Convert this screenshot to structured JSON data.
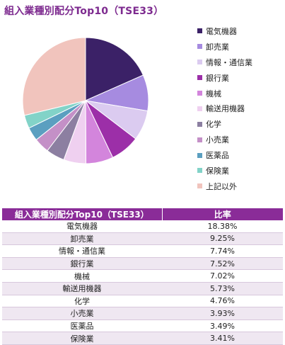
{
  "title": "組入業種別配分Top10（TSE33）",
  "chart_data": {
    "type": "pie",
    "title": "組入業種別配分Top10（TSE33）",
    "categories": [
      "電気機器",
      "卸売業",
      "情報・通信業",
      "銀行業",
      "機械",
      "輸送用機器",
      "化学",
      "小売業",
      "医薬品",
      "保険業",
      "上記以外"
    ],
    "values": [
      18.38,
      9.25,
      7.74,
      7.52,
      7.02,
      5.73,
      4.76,
      3.93,
      3.49,
      3.41,
      28.77
    ],
    "colors": [
      "#3b2167",
      "#a68be0",
      "#dbcbf0",
      "#9c2fa8",
      "#d385dc",
      "#efd0f0",
      "#8c7fa1",
      "#c490c7",
      "#5b9fc0",
      "#82d3c8",
      "#f1c4bd"
    ],
    "legend_position": "right"
  },
  "table": {
    "headers": [
      "組入業種別配分Top10（TSE33）",
      "比率"
    ],
    "rows": [
      [
        "電気機器",
        "18.38%"
      ],
      [
        "卸売業",
        "9.25%"
      ],
      [
        "情報・通信業",
        "7.74%"
      ],
      [
        "銀行業",
        "7.52%"
      ],
      [
        "機械",
        "7.02%"
      ],
      [
        "輸送用機器",
        "5.73%"
      ],
      [
        "化学",
        "4.76%"
      ],
      [
        "小売業",
        "3.93%"
      ],
      [
        "医薬品",
        "3.49%"
      ],
      [
        "保険業",
        "3.41%"
      ]
    ]
  }
}
